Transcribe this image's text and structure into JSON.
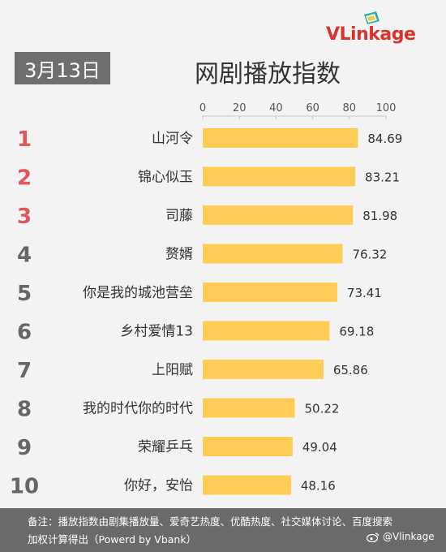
{
  "brand": {
    "name": "VLinkage",
    "accent_color": "#d9342b"
  },
  "date_badge": "3月13日",
  "title": "网剧播放指数",
  "footer": {
    "note": "备注：播放指数由剧集播放量、爱奇艺热度、优酷热度、社交媒体讨论、百度搜索加权计算得出（Powerd by Vbank）",
    "watermark": "@Vlinkage",
    "watermark_icon": "weibo-icon"
  },
  "colors": {
    "bar": "#ffcc55",
    "rank_top3": "#e0575e",
    "rank_rest": "#666666",
    "badge_bg": "#6e6e6e",
    "footer_bg": "#6a6a6a"
  },
  "chart_data": {
    "type": "bar",
    "orientation": "horizontal",
    "title": "网剧播放指数",
    "categories": [
      "山河令",
      "锦心似玉",
      "司藤",
      "赘婿",
      "你是我的城池营垒",
      "乡村爱情13",
      "上阳赋",
      "我的时代你的时代",
      "荣耀乒乓",
      "你好，安怡"
    ],
    "ranks": [
      "1",
      "2",
      "3",
      "4",
      "5",
      "6",
      "7",
      "8",
      "9",
      "10"
    ],
    "values": [
      84.69,
      83.21,
      81.98,
      76.32,
      73.41,
      69.18,
      65.86,
      50.22,
      49.04,
      48.16
    ],
    "value_labels": [
      "84.69",
      "83.21",
      "81.98",
      "76.32",
      "73.41",
      "69.18",
      "65.86",
      "50.22",
      "49.04",
      "48.16"
    ],
    "xlim": [
      0,
      100
    ],
    "xticks": [
      "0",
      "20",
      "40",
      "60",
      "80",
      "100"
    ],
    "tick_position": "top",
    "grid": false
  }
}
